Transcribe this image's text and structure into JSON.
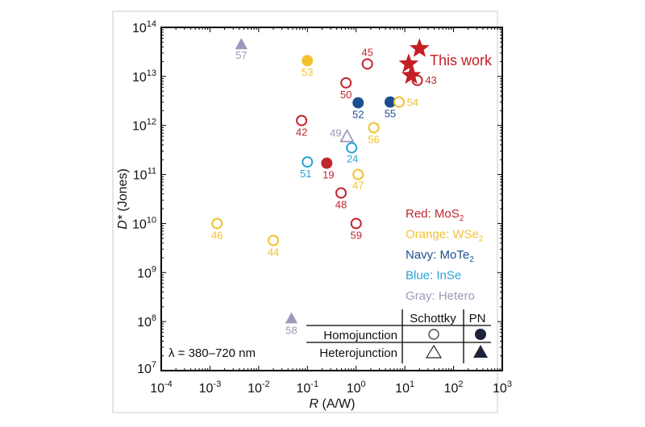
{
  "chart_data": {
    "type": "scatter",
    "xlabel": "R (A/W)",
    "xlabel_italic_part": "R",
    "xlabel_rest": " (A/W)",
    "ylabel_italic_part": "D*",
    "ylabel_rest": " (Jones)",
    "xscale": "log",
    "yscale": "log",
    "xlim": [
      0.0001,
      1000
    ],
    "ylim": [
      10000000.0,
      100000000000000.0
    ],
    "x_ticks": [
      -4,
      -3,
      -2,
      -1,
      0,
      1,
      2,
      3
    ],
    "y_ticks": [
      7,
      8,
      9,
      10,
      11,
      12,
      13,
      14
    ],
    "tick_base": "10",
    "grid": false,
    "annotation": "λ = 380–720 nm",
    "colors": {
      "red": "#c0262c",
      "orange": "#f2c12e",
      "navy": "#1d4f8f",
      "blue": "#2ba3d8",
      "gray": "#9a9abb",
      "star": "#c41e24"
    },
    "points": [
      {
        "label": "57",
        "x": 0.0044,
        "y": 45000000000000.0,
        "color": "gray",
        "shape": "triangle",
        "filled": true
      },
      {
        "label": "53",
        "x": 0.1,
        "y": 21000000000000.0,
        "color": "orange",
        "shape": "circle",
        "filled": true
      },
      {
        "label": "45",
        "x": 1.7,
        "y": 18000000000000.0,
        "color": "red",
        "shape": "circle",
        "filled": false
      },
      {
        "label": "43",
        "x": 18,
        "y": 8300000000000.0,
        "color": "red",
        "shape": "circle",
        "filled": false
      },
      {
        "label": "50",
        "x": 0.62,
        "y": 7400000000000.0,
        "color": "red",
        "shape": "circle",
        "filled": false
      },
      {
        "label": "52",
        "x": 1.1,
        "y": 2900000000000.0,
        "color": "navy",
        "shape": "circle",
        "filled": true
      },
      {
        "label": "55",
        "x": 5,
        "y": 3000000000000.0,
        "color": "navy",
        "shape": "circle",
        "filled": true
      },
      {
        "label": "54",
        "x": 7.6,
        "y": 3000000000000.0,
        "color": "orange",
        "shape": "circle",
        "filled": false
      },
      {
        "label": "42",
        "x": 0.076,
        "y": 1260000000000.0,
        "color": "red",
        "shape": "circle",
        "filled": false
      },
      {
        "label": "56",
        "x": 2.3,
        "y": 900000000000.0,
        "color": "orange",
        "shape": "circle",
        "filled": false
      },
      {
        "label": "49",
        "x": 0.65,
        "y": 590000000000.0,
        "color": "gray",
        "shape": "triangle",
        "filled": false
      },
      {
        "label": "24",
        "x": 0.81,
        "y": 350000000000.0,
        "color": "blue",
        "shape": "circle",
        "filled": false
      },
      {
        "label": "51",
        "x": 0.1,
        "y": 180000000000.0,
        "color": "blue",
        "shape": "circle",
        "filled": false
      },
      {
        "label": "19",
        "x": 0.25,
        "y": 170000000000.0,
        "color": "red",
        "shape": "circle",
        "filled": true
      },
      {
        "label": "47",
        "x": 1.1,
        "y": 100000000000.0,
        "color": "orange",
        "shape": "circle",
        "filled": false
      },
      {
        "label": "48",
        "x": 0.49,
        "y": 42000000000.0,
        "color": "red",
        "shape": "circle",
        "filled": false
      },
      {
        "label": "46",
        "x": 0.0014,
        "y": 10000000000.0,
        "color": "orange",
        "shape": "circle",
        "filled": false
      },
      {
        "label": "44",
        "x": 0.02,
        "y": 4500000000.0,
        "color": "orange",
        "shape": "circle",
        "filled": false
      },
      {
        "label": "59",
        "x": 1.0,
        "y": 10000000000.0,
        "color": "red",
        "shape": "circle",
        "filled": false
      },
      {
        "label": "58",
        "x": 0.047,
        "y": 115000000.0,
        "color": "gray",
        "shape": "triangle",
        "filled": true
      }
    ],
    "this_work": {
      "label": "This work",
      "points": [
        {
          "x": 20,
          "y": 37000000000000.0
        },
        {
          "x": 12,
          "y": 18000000000000.0
        },
        {
          "x": 13.5,
          "y": 10500000000000.0
        }
      ]
    },
    "color_legend": [
      {
        "prefix": "Red: MoS",
        "sub": "2",
        "color": "red"
      },
      {
        "prefix": "Orange: WSe",
        "sub": "2",
        "color": "orange"
      },
      {
        "prefix": "Navy: MoTe",
        "sub": "2",
        "color": "navy"
      },
      {
        "prefix": "Blue: InSe",
        "sub": "",
        "color": "blue"
      },
      {
        "prefix": "Gray: Hetero",
        "sub": "",
        "color": "gray"
      }
    ],
    "shape_legend": {
      "col_headers": [
        "Schottky",
        "PN"
      ],
      "rows": [
        "Homojunction",
        "Heterojunction"
      ]
    }
  }
}
